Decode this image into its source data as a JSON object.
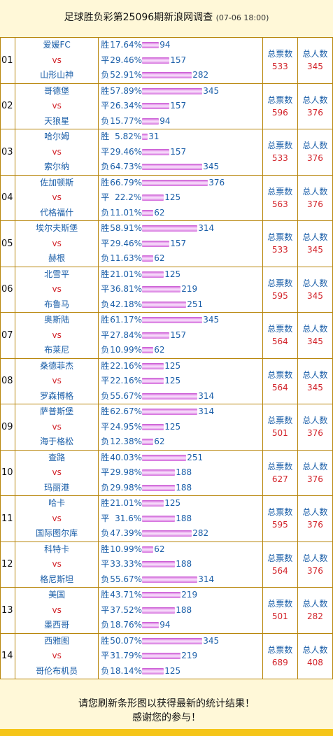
{
  "header": {
    "title": "足球胜负彩第25096期新浪网调查",
    "time": "(07-06 18:00)"
  },
  "labels": {
    "win": "胜",
    "draw": "平",
    "loss": "负",
    "vs": "vs",
    "total_votes": "总票数",
    "total_people": "总人数"
  },
  "footer": {
    "line1": "请您刷新条形图以获得最新的统计结果！",
    "line2": "感谢您的参与！"
  },
  "colors": {
    "team": "#1a5ea8",
    "vs": "#d2232a",
    "border": "#b8860b",
    "background": "#fff8d8",
    "bar": "#d469dc",
    "bottom_bar": "#f5c518"
  },
  "matches": [
    {
      "no": "01",
      "home": "爱媛FC",
      "away": "山形山神",
      "win_pct": "17.64%",
      "win": "94",
      "draw_pct": "29.46%",
      "draw": "157",
      "loss_pct": "52.91%",
      "loss": "282",
      "votes": "533",
      "people": "345"
    },
    {
      "no": "02",
      "home": "哥德堡",
      "away": "天狼星",
      "win_pct": "57.89%",
      "win": "345",
      "draw_pct": "26.34%",
      "draw": "157",
      "loss_pct": "15.77%",
      "loss": "94",
      "votes": "596",
      "people": "376"
    },
    {
      "no": "03",
      "home": "哈尔姆",
      "away": "索尔纳",
      "win_pct": "5.82%",
      "win": "31",
      "draw_pct": "29.46%",
      "draw": "157",
      "loss_pct": "64.73%",
      "loss": "345",
      "votes": "533",
      "people": "376"
    },
    {
      "no": "04",
      "home": "佐加顿斯",
      "away": "代格福什",
      "win_pct": "66.79%",
      "win": "376",
      "draw_pct": "22.2%",
      "draw": "125",
      "loss_pct": "11.01%",
      "loss": "62",
      "votes": "563",
      "people": "376"
    },
    {
      "no": "05",
      "home": "埃尔夫斯堡",
      "away": "赫根",
      "win_pct": "58.91%",
      "win": "314",
      "draw_pct": "29.46%",
      "draw": "157",
      "loss_pct": "11.63%",
      "loss": "62",
      "votes": "533",
      "people": "345"
    },
    {
      "no": "06",
      "home": "北雪平",
      "away": "布鲁马",
      "win_pct": "21.01%",
      "win": "125",
      "draw_pct": "36.81%",
      "draw": "219",
      "loss_pct": "42.18%",
      "loss": "251",
      "votes": "595",
      "people": "345"
    },
    {
      "no": "07",
      "home": "奥斯陆",
      "away": "布莱尼",
      "win_pct": "61.17%",
      "win": "345",
      "draw_pct": "27.84%",
      "draw": "157",
      "loss_pct": "10.99%",
      "loss": "62",
      "votes": "564",
      "people": "345"
    },
    {
      "no": "08",
      "home": "桑德菲杰",
      "away": "罗森博格",
      "win_pct": "22.16%",
      "win": "125",
      "draw_pct": "22.16%",
      "draw": "125",
      "loss_pct": "55.67%",
      "loss": "314",
      "votes": "564",
      "people": "345"
    },
    {
      "no": "09",
      "home": "萨普斯堡",
      "away": "海于格松",
      "win_pct": "62.67%",
      "win": "314",
      "draw_pct": "24.95%",
      "draw": "125",
      "loss_pct": "12.38%",
      "loss": "62",
      "votes": "501",
      "people": "376"
    },
    {
      "no": "10",
      "home": "查路",
      "away": "玛丽港",
      "win_pct": "40.03%",
      "win": "251",
      "draw_pct": "29.98%",
      "draw": "188",
      "loss_pct": "29.98%",
      "loss": "188",
      "votes": "627",
      "people": "376"
    },
    {
      "no": "11",
      "home": "哈卡",
      "away": "国际图尔库",
      "win_pct": "21.01%",
      "win": "125",
      "draw_pct": "31.6%",
      "draw": "188",
      "loss_pct": "47.39%",
      "loss": "282",
      "votes": "595",
      "people": "376"
    },
    {
      "no": "12",
      "home": "科特卡",
      "away": "格尼斯坦",
      "win_pct": "10.99%",
      "win": "62",
      "draw_pct": "33.33%",
      "draw": "188",
      "loss_pct": "55.67%",
      "loss": "314",
      "votes": "564",
      "people": "376"
    },
    {
      "no": "13",
      "home": "美国",
      "away": "墨西哥",
      "win_pct": "43.71%",
      "win": "219",
      "draw_pct": "37.52%",
      "draw": "188",
      "loss_pct": "18.76%",
      "loss": "94",
      "votes": "501",
      "people": "282"
    },
    {
      "no": "14",
      "home": "西雅图",
      "away": "哥伦布机员",
      "win_pct": "50.07%",
      "win": "345",
      "draw_pct": "31.79%",
      "draw": "219",
      "loss_pct": "18.14%",
      "loss": "125",
      "votes": "689",
      "people": "408"
    }
  ]
}
